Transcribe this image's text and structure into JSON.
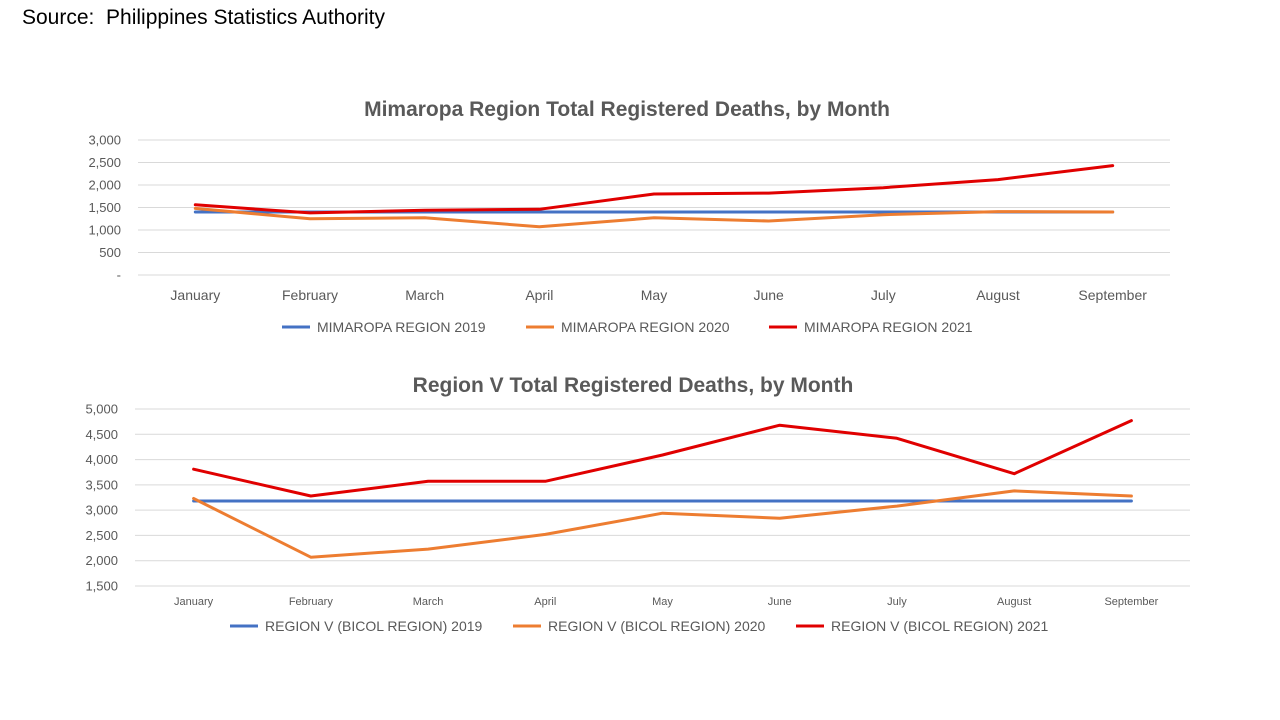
{
  "source": "Source:  Philippines Statistics Authority",
  "chart_data": [
    {
      "type": "line",
      "title": "Mimaropa Region Total Registered Deaths, by Month",
      "categories": [
        "January",
        "February",
        "March",
        "April",
        "May",
        "June",
        "July",
        "August",
        "September"
      ],
      "yticks": [
        "-",
        "500",
        "1,000",
        "1,500",
        "2,000",
        "2,500",
        "3,000"
      ],
      "ylim": [
        0,
        3000
      ],
      "grid": true,
      "legend_position": "bottom",
      "series": [
        {
          "name": "MIMAROPA REGION 2019",
          "color": "#4472c4",
          "values": [
            1400,
            1400,
            1400,
            1400,
            1400,
            1400,
            1400,
            1400,
            1400
          ]
        },
        {
          "name": "MIMAROPA REGION 2020",
          "color": "#ed7d31",
          "values": [
            1480,
            1250,
            1270,
            1070,
            1270,
            1200,
            1340,
            1410,
            1400
          ]
        },
        {
          "name": "MIMAROPA REGION 2021",
          "color": "#e00000",
          "values": [
            1560,
            1380,
            1440,
            1460,
            1800,
            1820,
            1940,
            2120,
            2430
          ]
        }
      ]
    },
    {
      "type": "line",
      "title": "Region V Total Registered Deaths, by Month",
      "categories": [
        "January",
        "February",
        "March",
        "April",
        "May",
        "June",
        "July",
        "August",
        "September"
      ],
      "yticks": [
        "1,500",
        "2,000",
        "2,500",
        "3,000",
        "3,500",
        "4,000",
        "4,500",
        "5,000"
      ],
      "ylim": [
        1500,
        5000
      ],
      "grid": true,
      "legend_position": "bottom",
      "series": [
        {
          "name": "REGION V (BICOL REGION) 2019",
          "color": "#4472c4",
          "values": [
            3180,
            3180,
            3180,
            3180,
            3180,
            3180,
            3180,
            3180,
            3180
          ]
        },
        {
          "name": "REGION V (BICOL REGION) 2020",
          "color": "#ed7d31",
          "values": [
            3230,
            2070,
            2230,
            2520,
            2940,
            2840,
            3080,
            3380,
            3280
          ]
        },
        {
          "name": "REGION V (BICOL REGION) 2021",
          "color": "#e00000",
          "values": [
            3810,
            3280,
            3570,
            3570,
            4090,
            4680,
            4420,
            3720,
            4770
          ]
        }
      ]
    }
  ]
}
